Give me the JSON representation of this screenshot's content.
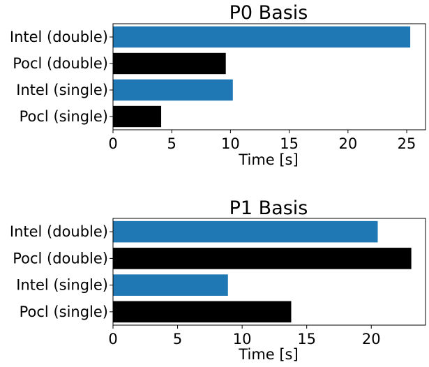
{
  "chart_data": [
    {
      "type": "bar",
      "orientation": "horizontal",
      "title": "P0 Basis",
      "xlabel": "Time [s]",
      "ylabel": "",
      "xlim": [
        0,
        26.6
      ],
      "xticks": [
        0,
        5,
        10,
        15,
        20,
        25
      ],
      "categories": [
        "Intel (double)",
        "Pocl (double)",
        "Intel (single)",
        "Pocl (single)"
      ],
      "values": [
        25.3,
        9.6,
        10.2,
        4.1
      ],
      "colors": [
        "#1f77b4",
        "#000000",
        "#1f77b4",
        "#000000"
      ],
      "grid": false
    },
    {
      "type": "bar",
      "orientation": "horizontal",
      "title": "P1 Basis",
      "xlabel": "Time [s]",
      "ylabel": "",
      "xlim": [
        0,
        24.2
      ],
      "xticks": [
        0,
        5,
        10,
        15,
        20
      ],
      "categories": [
        "Intel (double)",
        "Pocl (double)",
        "Intel (single)",
        "Pocl (single)"
      ],
      "values": [
        20.5,
        23.1,
        8.9,
        13.8
      ],
      "colors": [
        "#1f77b4",
        "#000000",
        "#1f77b4",
        "#000000"
      ],
      "grid": false
    }
  ]
}
